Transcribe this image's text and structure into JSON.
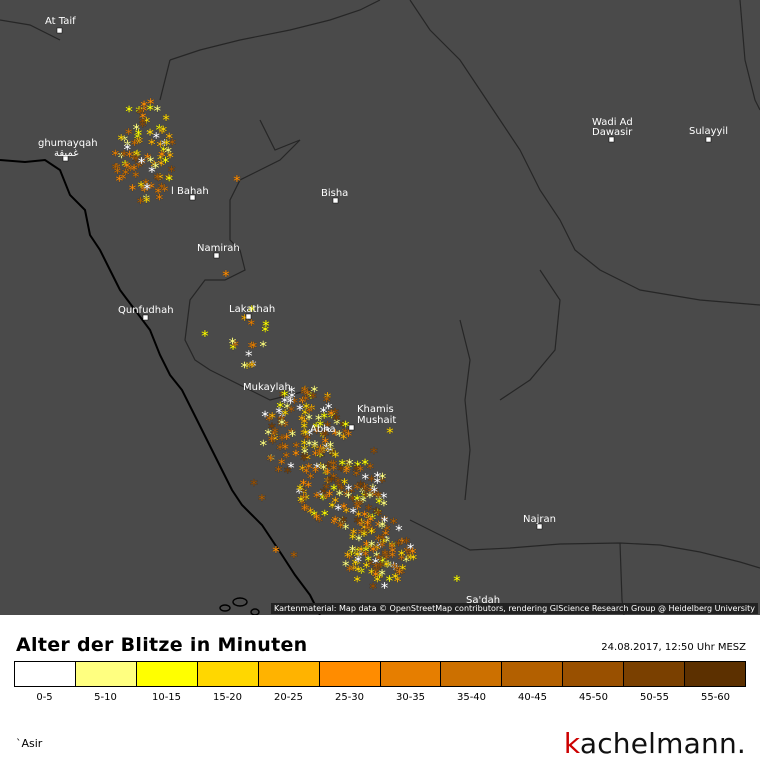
{
  "map": {
    "attribution": "Kartenmaterial: Map data © OpenStreetMap contributors, rendering GIScience Research Group @ Heidelberg University",
    "region": "`Asir",
    "cities": [
      {
        "id": "at-taif",
        "name": "At Taif"
      },
      {
        "id": "ghumayqah",
        "name": "ghumayqah",
        "name2": "غميقة"
      },
      {
        "id": "al-bahah",
        "name": "l Bahah"
      },
      {
        "id": "bisha",
        "name": "Bisha"
      },
      {
        "id": "namirah",
        "name": "Namirah"
      },
      {
        "id": "qunfudhah",
        "name": "Qunfudhah"
      },
      {
        "id": "lakathah",
        "name": "Lakathah"
      },
      {
        "id": "mukaylah",
        "name": "Mukaylah"
      },
      {
        "id": "khamis-mushait",
        "name": "Khamis",
        "name2": "Mushait"
      },
      {
        "id": "abha",
        "name": "Abha"
      },
      {
        "id": "najran",
        "name": "Najran"
      },
      {
        "id": "sadah",
        "name": "Sa'dah"
      },
      {
        "id": "wadi-ad-dawasir",
        "name": "Wadi Ad",
        "name2": "Dawasir"
      },
      {
        "id": "sulayyil",
        "name": "Sulayyil"
      }
    ],
    "strike_colors": [
      "#ffffff",
      "#ffff80",
      "#ffff00",
      "#ffd700",
      "#ffb300",
      "#ff8c00",
      "#e67e00",
      "#cc7000",
      "#b36000",
      "#995000",
      "#7a4000",
      "#5c3000"
    ]
  },
  "legend": {
    "title": "Alter der Blitze in Minuten",
    "timestamp": "24.08.2017, 12:50 Uhr MESZ",
    "bins": [
      {
        "label": "0-5",
        "color": "#ffffff"
      },
      {
        "label": "5-10",
        "color": "#ffff80"
      },
      {
        "label": "10-15",
        "color": "#ffff00"
      },
      {
        "label": "15-20",
        "color": "#ffd700"
      },
      {
        "label": "20-25",
        "color": "#ffb300"
      },
      {
        "label": "25-30",
        "color": "#ff8c00"
      },
      {
        "label": "30-35",
        "color": "#e67e00"
      },
      {
        "label": "35-40",
        "color": "#cc7000"
      },
      {
        "label": "40-45",
        "color": "#b36000"
      },
      {
        "label": "45-50",
        "color": "#995000"
      },
      {
        "label": "50-55",
        "color": "#7a4000"
      },
      {
        "label": "55-60",
        "color": "#5c3000"
      }
    ]
  },
  "brand": {
    "k": "k",
    "rest": "achelmann."
  }
}
